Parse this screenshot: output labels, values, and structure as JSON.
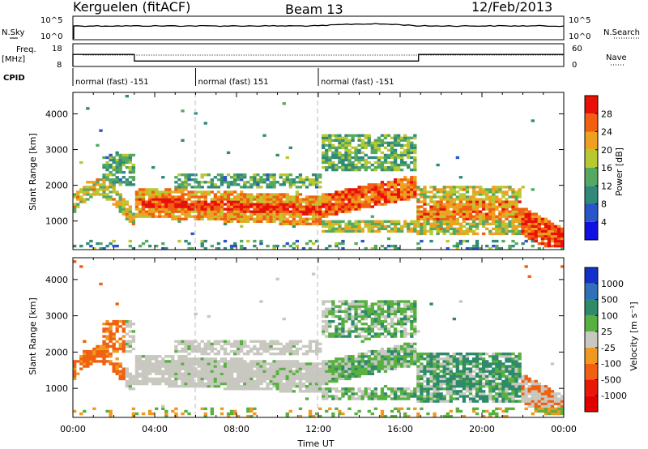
{
  "header": {
    "radar": "Kerguelen (fitACF)",
    "beam": "Beam 13",
    "date": "12/Feb/2013"
  },
  "params": {
    "nsky_label": "N.Sky",
    "nsearch_label": "N.Search",
    "freq_label": "Freq.",
    "freq_unit": "[MHz]",
    "nave_label": "Nave",
    "cpid_label": "CPID",
    "nsky_ticks": [
      "10^5",
      "10^0"
    ],
    "nsearch_ticks": [
      "10^5",
      "10^0"
    ],
    "freq_ticks": [
      "18",
      "8"
    ],
    "nave_ticks": [
      "60",
      "0"
    ]
  },
  "cpid": [
    {
      "start": 0.0,
      "end": 6.0,
      "label": "normal (fast) -151"
    },
    {
      "start": 6.0,
      "end": 12.0,
      "label": "normal (fast) 151"
    },
    {
      "start": 12.0,
      "end": 24.0,
      "label": "normal (fast) -151"
    }
  ],
  "chart_data": [
    {
      "type": "heatmap",
      "name": "power",
      "ylabel": "Slant Range [km]",
      "ylim": [
        200,
        4600
      ],
      "yticks": [
        1000,
        2000,
        3000,
        4000
      ],
      "xlim": [
        0,
        24
      ],
      "colorbar": {
        "label": "Power [dB]",
        "ticks": [
          4,
          8,
          12,
          16,
          20,
          24,
          28
        ],
        "range": [
          0,
          32
        ],
        "colors": [
          "#1010e0",
          "#2a55c8",
          "#2f8a7a",
          "#55a860",
          "#b8c830",
          "#f0a020",
          "#f06010",
          "#e81008"
        ]
      }
    },
    {
      "type": "heatmap",
      "name": "velocity",
      "ylabel": "Slant Range [km]",
      "xlabel": "Time UT",
      "ylim": [
        200,
        4600
      ],
      "yticks": [
        1000,
        2000,
        3000,
        4000
      ],
      "xlim": [
        0,
        24
      ],
      "xticks": [
        "00:00",
        "04:00",
        "08:00",
        "12:00",
        "16:00",
        "20:00",
        "00:00"
      ],
      "colorbar": {
        "label": "Velocity [m s⁻¹]",
        "ticks": [
          "1000",
          "500",
          "100",
          "25",
          "-25",
          "-100",
          "-500",
          "-1000"
        ],
        "colors": [
          "#1530c8",
          "#3070b8",
          "#2e8a6a",
          "#58b040",
          "#c8c8c0",
          "#f09820",
          "#f06010",
          "#e81808",
          "#e00000"
        ]
      }
    }
  ]
}
